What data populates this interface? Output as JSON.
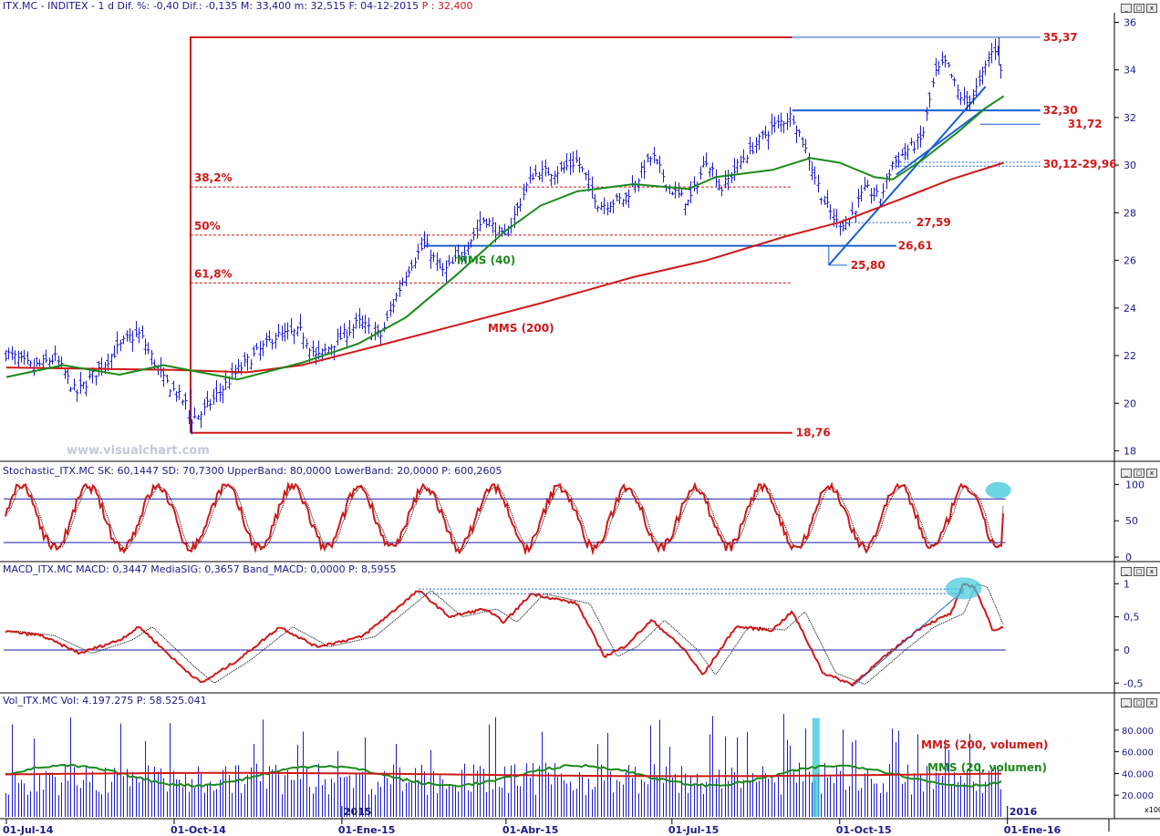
{
  "panels": {
    "price_header": {
      "title": "ITX.MC - INDITEX - 1 d",
      "stats": "Dif. %: -0,40 Dif.: -0,135 M: 33,400 m: 32,515 F: 04-12-2015",
      "p_label": "P : 32,400"
    },
    "stoch_header": {
      "text": "Stochastic_ITX.MC SK: 60,1447 SD: 70,7300 UpperBand: 80,0000 LowerBand: 20,0000 P: 600,2605"
    },
    "macd_header": {
      "text": "MACD_ITX.MC MACD: 0,3447 MediaSIG: 0,3657 Band_MACD: 0,0000 P: 8,5955"
    },
    "vol_header": {
      "text": "Vol_ITX.MC Vol: 4.197.275 P: 58.525.041"
    }
  },
  "watermark": "www.visualchart.com",
  "window_buttons": [
    "_",
    "□",
    "x"
  ],
  "colors": {
    "price_bars": "#1c1ccf",
    "mms40": "#1a8a1a",
    "mms200": "#d01818",
    "fib": "#d01818",
    "trend": "#1a5fd0",
    "highlight": "#3ec8d8",
    "volume": "#1c1ccf"
  },
  "chart_data": [
    {
      "type": "ohlc",
      "x_tick_labels": [
        "01-Jul-14",
        "01-Oct-14",
        "01-Ene-15",
        "01-Abr-15",
        "01-Jul-15",
        "01-Oct-15",
        "01-Ene-16"
      ],
      "year_labels": [
        "2015",
        "2016"
      ],
      "y_ticks": [
        18,
        20,
        22,
        24,
        26,
        28,
        30,
        32,
        34,
        36
      ],
      "ylim": [
        17.6,
        36.4
      ],
      "price_path": [
        {
          "d": "2014-07-01",
          "v": 22.1
        },
        {
          "d": "2014-07-15",
          "v": 21.5
        },
        {
          "d": "2014-07-28",
          "v": 21.9
        },
        {
          "d": "2014-08-08",
          "v": 20.4
        },
        {
          "d": "2014-08-20",
          "v": 21.4
        },
        {
          "d": "2014-09-05",
          "v": 22.7
        },
        {
          "d": "2014-09-12",
          "v": 22.9
        },
        {
          "d": "2014-09-25",
          "v": 21.0
        },
        {
          "d": "2014-10-07",
          "v": 20.0
        },
        {
          "d": "2014-10-10",
          "v": 19.3
        },
        {
          "d": "2014-10-16",
          "v": 19.6
        },
        {
          "d": "2014-11-05",
          "v": 21.4
        },
        {
          "d": "2014-11-25",
          "v": 22.8
        },
        {
          "d": "2014-12-10",
          "v": 23.0
        },
        {
          "d": "2014-12-18",
          "v": 21.9
        },
        {
          "d": "2015-01-10",
          "v": 23.4
        },
        {
          "d": "2015-01-22",
          "v": 22.8
        },
        {
          "d": "2015-02-05",
          "v": 25.5
        },
        {
          "d": "2015-02-15",
          "v": 26.7
        },
        {
          "d": "2015-02-25",
          "v": 25.5
        },
        {
          "d": "2015-03-05",
          "v": 26.0
        },
        {
          "d": "2015-03-20",
          "v": 27.8
        },
        {
          "d": "2015-03-31",
          "v": 26.9
        },
        {
          "d": "2015-04-15",
          "v": 29.6
        },
        {
          "d": "2015-05-01",
          "v": 29.8
        },
        {
          "d": "2015-05-10",
          "v": 30.2
        },
        {
          "d": "2015-05-22",
          "v": 28.3
        },
        {
          "d": "2015-06-05",
          "v": 28.6
        },
        {
          "d": "2015-06-20",
          "v": 30.4
        },
        {
          "d": "2015-06-30",
          "v": 29.0
        },
        {
          "d": "2015-07-10",
          "v": 28.4
        },
        {
          "d": "2015-07-20",
          "v": 30.3
        },
        {
          "d": "2015-07-28",
          "v": 29.0
        },
        {
          "d": "2015-08-10",
          "v": 30.4
        },
        {
          "d": "2015-08-25",
          "v": 31.6
        },
        {
          "d": "2015-09-05",
          "v": 32.1
        },
        {
          "d": "2015-09-12",
          "v": 30.7
        },
        {
          "d": "2015-09-22",
          "v": 28.5
        },
        {
          "d": "2015-09-29",
          "v": 27.6
        },
        {
          "d": "2015-10-05",
          "v": 27.6
        },
        {
          "d": "2015-10-15",
          "v": 29.0
        },
        {
          "d": "2015-10-23",
          "v": 28.6
        },
        {
          "d": "2015-10-30",
          "v": 30.1
        },
        {
          "d": "2015-11-08",
          "v": 30.7
        },
        {
          "d": "2015-11-15",
          "v": 31.1
        },
        {
          "d": "2015-11-22",
          "v": 33.8
        },
        {
          "d": "2015-11-28",
          "v": 34.3
        },
        {
          "d": "2015-12-05",
          "v": 33.0
        },
        {
          "d": "2015-12-10",
          "v": 32.6
        },
        {
          "d": "2015-12-17",
          "v": 33.5
        },
        {
          "d": "2015-12-22",
          "v": 34.6
        },
        {
          "d": "2015-12-27",
          "v": 35.1
        },
        {
          "d": "2015-12-30",
          "v": 32.4
        }
      ],
      "mms40": [
        {
          "d": "2014-07-01",
          "v": 21.1
        },
        {
          "d": "2014-08-01",
          "v": 21.6
        },
        {
          "d": "2014-09-01",
          "v": 21.2
        },
        {
          "d": "2014-09-25",
          "v": 21.6
        },
        {
          "d": "2014-11-05",
          "v": 21.0
        },
        {
          "d": "2014-12-10",
          "v": 21.7
        },
        {
          "d": "2015-01-10",
          "v": 22.5
        },
        {
          "d": "2015-02-05",
          "v": 23.6
        },
        {
          "d": "2015-03-05",
          "v": 25.4
        },
        {
          "d": "2015-03-31",
          "v": 27.2
        },
        {
          "d": "2015-04-20",
          "v": 28.3
        },
        {
          "d": "2015-05-10",
          "v": 28.9
        },
        {
          "d": "2015-06-10",
          "v": 29.2
        },
        {
          "d": "2015-07-10",
          "v": 29.0
        },
        {
          "d": "2015-07-25",
          "v": 29.5
        },
        {
          "d": "2015-08-25",
          "v": 29.8
        },
        {
          "d": "2015-09-15",
          "v": 30.3
        },
        {
          "d": "2015-10-01",
          "v": 30.1
        },
        {
          "d": "2015-10-20",
          "v": 29.5
        },
        {
          "d": "2015-10-30",
          "v": 29.4
        },
        {
          "d": "2015-11-15",
          "v": 30.2
        },
        {
          "d": "2015-12-05",
          "v": 31.4
        },
        {
          "d": "2015-12-20",
          "v": 32.4
        },
        {
          "d": "2015-12-30",
          "v": 32.9
        }
      ],
      "mms200": [
        {
          "d": "2014-07-01",
          "v": 21.5
        },
        {
          "d": "2014-10-01",
          "v": 21.4
        },
        {
          "d": "2014-11-10",
          "v": 21.3
        },
        {
          "d": "2014-12-10",
          "v": 21.6
        },
        {
          "d": "2015-01-20",
          "v": 22.4
        },
        {
          "d": "2015-03-01",
          "v": 23.2
        },
        {
          "d": "2015-04-20",
          "v": 24.2
        },
        {
          "d": "2015-06-10",
          "v": 25.3
        },
        {
          "d": "2015-07-20",
          "v": 26.0
        },
        {
          "d": "2015-09-01",
          "v": 27.0
        },
        {
          "d": "2015-10-01",
          "v": 27.6
        },
        {
          "d": "2015-11-01",
          "v": 28.5
        },
        {
          "d": "2015-12-01",
          "v": 29.4
        },
        {
          "d": "2015-12-30",
          "v": 30.1
        }
      ],
      "fibonacci": [
        {
          "label": "38,2%",
          "value": 29.08
        },
        {
          "label": "50%",
          "value": 27.06
        },
        {
          "label": "61,8%",
          "value": 25.05
        }
      ],
      "levels": [
        {
          "label": "35,37",
          "value": 35.37
        },
        {
          "label": "32,30",
          "value": 32.3
        },
        {
          "label": "31,72",
          "value": 31.72
        },
        {
          "label": "30,12-29,96",
          "value": 30.12,
          "value2": 29.96
        },
        {
          "label": "27,59",
          "value": 27.59
        },
        {
          "label": "26,61",
          "value": 26.61
        },
        {
          "label": "25,80",
          "value": 25.8
        },
        {
          "label": "18,76",
          "value": 18.76
        }
      ],
      "ma_labels": [
        "MMS (40)",
        "MMS (200)"
      ]
    },
    {
      "type": "line",
      "name": "Stochastic",
      "y_ticks": [
        0,
        50,
        100
      ],
      "ylim": [
        -5,
        108
      ],
      "bands": [
        80,
        20
      ],
      "sk_last": 60.1447,
      "sd_last": 70.73
    },
    {
      "type": "line",
      "name": "MACD",
      "y_tick_labels": [
        "1",
        "0,5",
        "0",
        "-0,5"
      ],
      "y_ticks": [
        1,
        0.5,
        0,
        -0.5
      ],
      "ylim": [
        -0.62,
        1.1
      ],
      "macd": [
        {
          "d": "2014-07-01",
          "v": 0.28
        },
        {
          "d": "2014-07-20",
          "v": 0.22
        },
        {
          "d": "2014-08-10",
          "v": -0.05
        },
        {
          "d": "2014-09-01",
          "v": 0.15
        },
        {
          "d": "2014-09-12",
          "v": 0.35
        },
        {
          "d": "2014-10-05",
          "v": -0.25
        },
        {
          "d": "2014-10-16",
          "v": -0.5
        },
        {
          "d": "2014-11-05",
          "v": -0.15
        },
        {
          "d": "2014-11-28",
          "v": 0.35
        },
        {
          "d": "2014-12-18",
          "v": 0.05
        },
        {
          "d": "2015-01-12",
          "v": 0.2
        },
        {
          "d": "2015-02-12",
          "v": 0.9
        },
        {
          "d": "2015-03-01",
          "v": 0.5
        },
        {
          "d": "2015-03-20",
          "v": 0.62
        },
        {
          "d": "2015-03-31",
          "v": 0.42
        },
        {
          "d": "2015-04-15",
          "v": 0.85
        },
        {
          "d": "2015-05-10",
          "v": 0.7
        },
        {
          "d": "2015-05-25",
          "v": -0.1
        },
        {
          "d": "2015-06-05",
          "v": 0.05
        },
        {
          "d": "2015-06-20",
          "v": 0.45
        },
        {
          "d": "2015-07-08",
          "v": 0.0
        },
        {
          "d": "2015-07-18",
          "v": -0.38
        },
        {
          "d": "2015-08-05",
          "v": 0.35
        },
        {
          "d": "2015-08-25",
          "v": 0.3
        },
        {
          "d": "2015-09-05",
          "v": 0.58
        },
        {
          "d": "2015-09-22",
          "v": -0.35
        },
        {
          "d": "2015-10-08",
          "v": -0.52
        },
        {
          "d": "2015-10-30",
          "v": 0.0
        },
        {
          "d": "2015-11-15",
          "v": 0.35
        },
        {
          "d": "2015-12-01",
          "v": 0.55
        },
        {
          "d": "2015-12-08",
          "v": 1.0
        },
        {
          "d": "2015-12-14",
          "v": 0.95
        },
        {
          "d": "2015-12-24",
          "v": 0.3
        },
        {
          "d": "2015-12-30",
          "v": 0.34
        }
      ]
    },
    {
      "type": "bar",
      "name": "Vol",
      "y_tick_labels": [
        "80.000",
        "60.000",
        "40.000",
        "20.000"
      ],
      "y_ticks": [
        80000,
        60000,
        40000,
        20000
      ],
      "ylim": [
        0,
        100000
      ],
      "unit": "x100",
      "ma_labels": [
        "MMS (200, volumen)",
        "MMS (20, volumen)"
      ],
      "vol_last": 4197275
    }
  ]
}
